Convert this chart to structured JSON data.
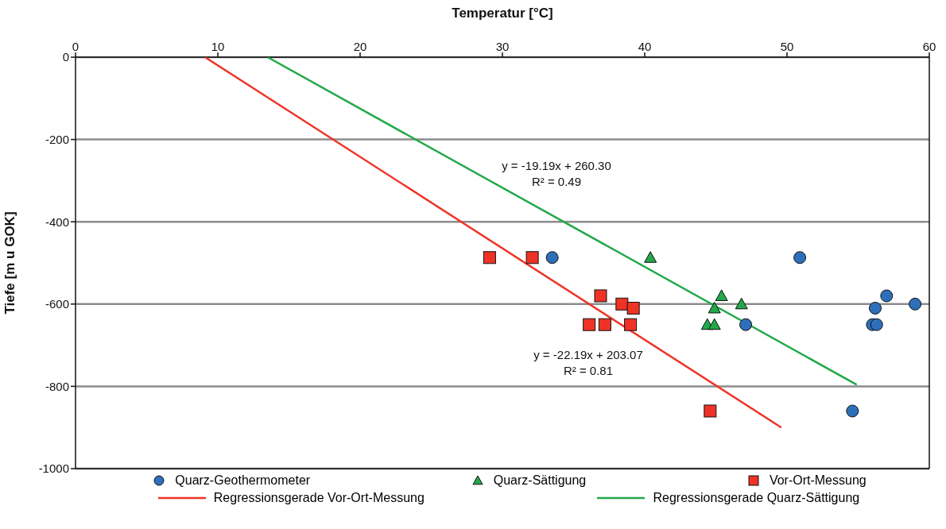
{
  "chart_data": {
    "type": "scatter",
    "xlabel": "Temperatur [°C]",
    "ylabel": "Tiefe [m u GOK]",
    "xlim": [
      0,
      60
    ],
    "xticks": [
      0,
      10,
      20,
      30,
      40,
      50,
      60
    ],
    "ylim": [
      -1000,
      0
    ],
    "yticks": [
      -1000,
      -800,
      -600,
      -400,
      -200,
      0
    ],
    "grid": "y",
    "legend": "bottom",
    "series": [
      {
        "name": "Quarz-Geothermometer",
        "marker": "circle",
        "color": "#2e6fba",
        "x": [
          33.5,
          50.9,
          57.0,
          56.2,
          56.0,
          56.3,
          59.0,
          47.1,
          54.6
        ],
        "values": [
          -487,
          -487,
          -580,
          -610,
          -650,
          -650,
          -600,
          -650,
          -860
        ]
      },
      {
        "name": "Quarz-Sättigung",
        "marker": "triangle",
        "color": "#22a84a",
        "x": [
          40.4,
          45.4,
          46.8,
          44.9,
          44.4,
          44.9
        ],
        "values": [
          -487,
          -580,
          -600,
          -610,
          -650,
          -650
        ]
      },
      {
        "name": "Vor-Ort-Messung",
        "marker": "square",
        "color": "#ee3326",
        "x": [
          29.1,
          32.1,
          36.9,
          38.4,
          39.2,
          36.1,
          37.2,
          39.0,
          44.6
        ],
        "values": [
          -487,
          -487,
          -580,
          -600,
          -610,
          -650,
          -650,
          -650,
          -860
        ]
      },
      {
        "name": "Regressionsgerade Vor-Ort-Messung",
        "type": "line",
        "marker": "none",
        "color": "#ee3326",
        "x": [
          9.1,
          49.6
        ],
        "values": [
          0,
          -900
        ]
      },
      {
        "name": "Regressionsgerade Quarz-Sättigung",
        "type": "line",
        "marker": "none",
        "color": "#22a84a",
        "x": [
          13.5,
          54.9
        ],
        "values": [
          0,
          -796
        ]
      }
    ],
    "annotations": [
      "y = -19.19x + 260.30",
      "R² = 0.49",
      "y = -22.19x + 203.07",
      "R² = 0.81"
    ]
  }
}
